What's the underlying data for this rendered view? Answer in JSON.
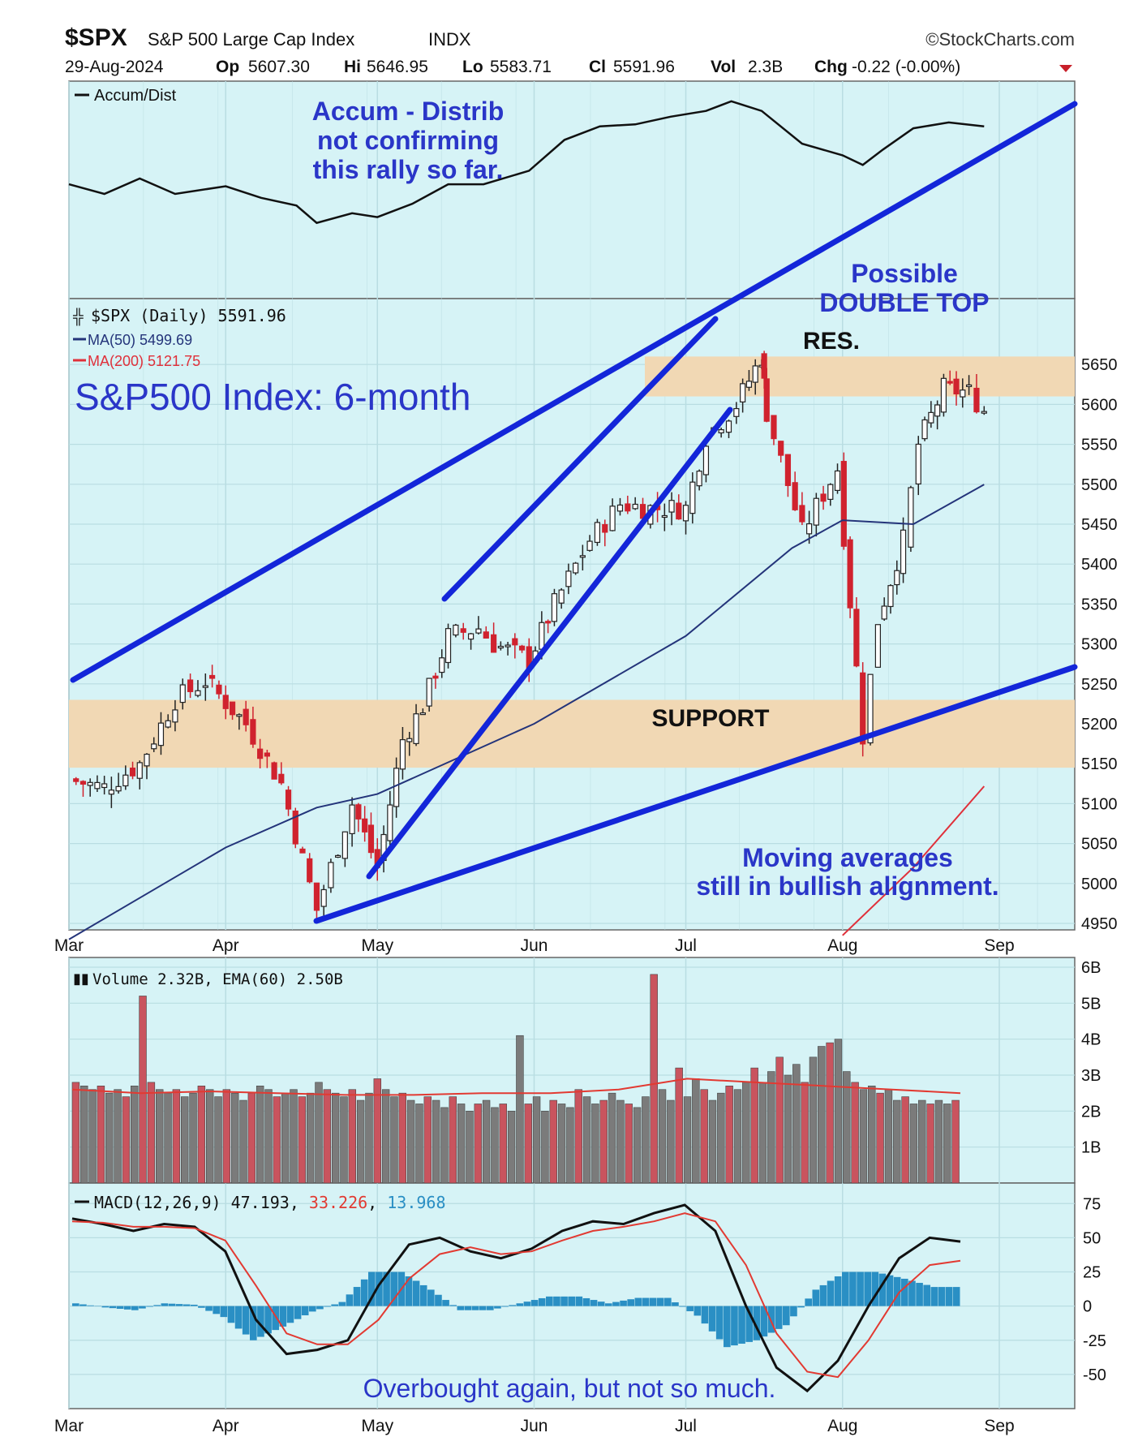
{
  "header": {
    "symbol": "$SPX",
    "name": "S&P 500 Large Cap Index",
    "exchange": "INDX",
    "source": "©StockCharts.com",
    "date": "29-Aug-2024",
    "op_label": "Op",
    "op": "5607.30",
    "hi_label": "Hi",
    "hi": "5646.95",
    "lo_label": "Lo",
    "lo": "5583.71",
    "cl_label": "Cl",
    "cl": "5591.96",
    "vol_label": "Vol",
    "vol": "2.3B",
    "chg_label": "Chg",
    "chg": "-0.22 (-0.00%)"
  },
  "colors": {
    "panel_bg": "#d6f3f6",
    "grid": "#b9dde2",
    "band": "#f1d8b4",
    "annotation": "#2a36c8",
    "trend": "#1326d9",
    "up": "#222222",
    "down": "#d0222e",
    "ma50": "#24347a",
    "ma200": "#e0303a",
    "vol_grey": "#7b7b7b",
    "vol_red": "#c9545e",
    "ema": "#e23a32",
    "macd_line": "#111111",
    "signal": "#e23a32",
    "hist": "#2a8fc4"
  },
  "annotations": {
    "ad_text": [
      "Accum - Distrib",
      "not confirming",
      "this rally so far."
    ],
    "double_top": [
      "Possible",
      "DOUBLE TOP"
    ],
    "res": "RES.",
    "support": "SUPPORT",
    "index_title": "S&P500 Index: 6-month",
    "ma_note": [
      "Moving averages",
      "still in bullish alignment."
    ],
    "macd_note": "Overbought again, but not so much."
  },
  "chart_data": [
    {
      "type": "line",
      "title": "Accum/Dist",
      "series": [
        {
          "name": "Accum/Dist",
          "x": [
            "Mar 1",
            "Mar 8",
            "Mar 15",
            "Mar 22",
            "Apr 1",
            "Apr 8",
            "Apr 15",
            "Apr 19",
            "Apr 26",
            "May 1",
            "May 8",
            "May 15",
            "May 22",
            "May 31",
            "Jun 7",
            "Jun 14",
            "Jun 21",
            "Jun 28",
            "Jul 5",
            "Jul 10",
            "Jul 16",
            "Jul 24",
            "Aug 1",
            "Aug 5",
            "Aug 9",
            "Aug 15",
            "Aug 22",
            "Aug 29"
          ],
          "values": [
            0.55,
            0.5,
            0.58,
            0.5,
            0.54,
            0.48,
            0.44,
            0.35,
            0.4,
            0.38,
            0.45,
            0.55,
            0.55,
            0.62,
            0.78,
            0.85,
            0.86,
            0.9,
            0.93,
            0.98,
            0.93,
            0.76,
            0.7,
            0.65,
            0.73,
            0.84,
            0.87,
            0.85
          ]
        }
      ]
    },
    {
      "type": "line",
      "title": "$SPX (Daily) 5591.96",
      "ylim": [
        4950,
        5700
      ],
      "y_ticks": [
        "4950",
        "5000",
        "5050",
        "5100",
        "5150",
        "5200",
        "5250",
        "5300",
        "5350",
        "5400",
        "5450",
        "5500",
        "5550",
        "5600",
        "5650"
      ],
      "x_ticks": [
        "Mar",
        "Apr",
        "May",
        "Jun",
        "Jul",
        "Aug",
        "Sep"
      ],
      "legend": [
        {
          "label": "$SPX (Daily) 5591.96",
          "color": "#222222"
        },
        {
          "label": "MA(50) 5499.69",
          "color": "#24347a"
        },
        {
          "label": "MA(200) 5121.75",
          "color": "#e0303a"
        }
      ],
      "series": [
        {
          "name": "$SPX (Daily) 5591.96",
          "x": [
            "Mar 1",
            "Mar 8",
            "Mar 15",
            "Mar 22",
            "Mar 28",
            "Apr 5",
            "Apr 12",
            "Apr 19",
            "Apr 26",
            "May 1",
            "May 6",
            "May 10",
            "May 15",
            "May 21",
            "May 24",
            "May 31",
            "Jun 5",
            "Jun 12",
            "Jun 18",
            "Jun 24",
            "Jul 1",
            "Jul 5",
            "Jul 11",
            "Jul 16",
            "Jul 17",
            "Jul 24",
            "Jul 31",
            "Aug 5",
            "Aug 8",
            "Aug 13",
            "Aug 16",
            "Aug 21",
            "Aug 26",
            "Aug 29"
          ],
          "values": [
            5130,
            5120,
            5150,
            5230,
            5254,
            5200,
            5125,
            4967,
            5100,
            5020,
            5180,
            5222,
            5310,
            5320,
            5300,
            5280,
            5350,
            5430,
            5475,
            5470,
            5470,
            5560,
            5600,
            5660,
            5590,
            5440,
            5520,
            5185,
            5330,
            5430,
            5550,
            5620,
            5615,
            5591.96
          ]
        },
        {
          "name": "MA(50) 5499.69",
          "x": [
            "Mar 1",
            "Apr 1",
            "Apr 19",
            "May 1",
            "Jun 1",
            "Jul 1",
            "Jul 22",
            "Aug 1",
            "Aug 15",
            "Aug 29"
          ],
          "values": [
            4930,
            5045,
            5095,
            5112,
            5200,
            5310,
            5420,
            5455,
            5450,
            5499.69
          ]
        },
        {
          "name": "MA(200) 5121.75",
          "x": [
            "Aug 1",
            "Aug 15",
            "Aug 29"
          ],
          "values": [
            4935,
            5020,
            5121.75
          ]
        }
      ],
      "bands": [
        {
          "label": "RES.",
          "from": 5610,
          "to": 5660
        },
        {
          "label": "SUPPORT",
          "from": 5145,
          "to": 5230
        }
      ]
    },
    {
      "type": "bar",
      "title": "Volume 2.32B, EMA(60) 2.50B",
      "ylim": [
        0,
        6
      ],
      "y_ticks": [
        "1B",
        "2B",
        "3B",
        "4B",
        "5B",
        "6B"
      ],
      "series": [
        {
          "name": "Volume",
          "values": [
            2.8,
            2.7,
            2.6,
            2.7,
            2.5,
            2.6,
            2.4,
            2.7,
            5.2,
            2.8,
            2.6,
            2.5,
            2.6,
            2.4,
            2.5,
            2.7,
            2.6,
            2.4,
            2.6,
            2.5,
            2.3,
            2.5,
            2.7,
            2.6,
            2.4,
            2.5,
            2.6,
            2.4,
            2.5,
            2.8,
            2.6,
            2.5,
            2.4,
            2.6,
            2.3,
            2.5,
            2.9,
            2.6,
            2.4,
            2.5,
            2.3,
            2.2,
            2.4,
            2.3,
            2.1,
            2.4,
            2.2,
            2.0,
            2.2,
            2.3,
            2.1,
            2.2,
            2.0,
            4.1,
            2.2,
            2.4,
            2.0,
            2.3,
            2.2,
            2.1,
            2.6,
            2.4,
            2.2,
            2.3,
            2.5,
            2.3,
            2.2,
            2.1,
            2.4,
            5.8,
            2.6,
            2.3,
            3.2,
            2.4,
            2.9,
            2.6,
            2.3,
            2.5,
            2.7,
            2.6,
            2.8,
            3.2,
            2.8,
            3.1,
            3.5,
            3.0,
            3.3,
            2.8,
            3.5,
            3.8,
            3.9,
            4.0,
            3.1,
            2.8,
            2.6,
            2.7,
            2.5,
            2.6,
            2.3,
            2.4,
            2.2,
            2.3,
            2.2,
            2.3,
            2.2,
            2.3
          ]
        },
        {
          "name": "EMA(60) 2.50B",
          "values": [
            2.6,
            2.5,
            2.55,
            2.5,
            2.45,
            2.45,
            2.5,
            2.5,
            2.6,
            2.9,
            2.8,
            2.7,
            2.6,
            2.5
          ]
        }
      ]
    },
    {
      "type": "line",
      "title": "MACD(12,26,9) 47.193, 33.226, 13.968",
      "ylim": [
        -75,
        90
      ],
      "y_ticks": [
        "75",
        "50",
        "25",
        "0",
        "-25",
        "-50"
      ],
      "series": [
        {
          "name": "47.193",
          "values": [
            64,
            60,
            55,
            60,
            58,
            40,
            -10,
            -35,
            -32,
            -25,
            15,
            45,
            50,
            40,
            35,
            42,
            55,
            62,
            60,
            68,
            74,
            55,
            0,
            -45,
            -62,
            -40,
            0,
            35,
            50,
            47.193
          ]
        },
        {
          "name": "33.226",
          "values": [
            62,
            61,
            58,
            58,
            57,
            48,
            15,
            -20,
            -28,
            -28,
            -10,
            20,
            38,
            43,
            38,
            40,
            48,
            55,
            58,
            62,
            68,
            62,
            30,
            -20,
            -48,
            -52,
            -25,
            10,
            30,
            33.226
          ]
        },
        {
          "name": "13.968",
          "values": [
            2,
            -1,
            -3,
            2,
            1,
            -8,
            -25,
            -15,
            -4,
            3,
            25,
            25,
            12,
            -3,
            -3,
            2,
            7,
            7,
            2,
            6,
            6,
            -7,
            -30,
            -25,
            -14,
            12,
            25,
            25,
            20,
            13.968
          ]
        }
      ]
    }
  ]
}
